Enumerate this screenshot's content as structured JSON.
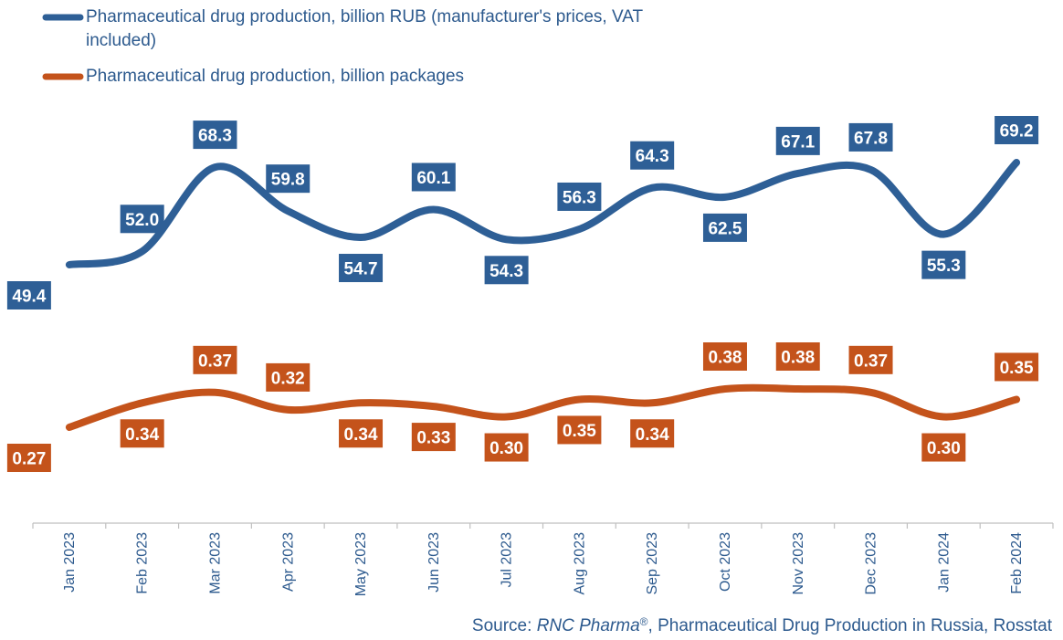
{
  "chart_data": {
    "type": "line",
    "categories": [
      "Jan 2023",
      "Feb 2023",
      "Mar 2023",
      "Apr 2023",
      "May 2023",
      "Jun 2023",
      "Jul 2023",
      "Aug 2023",
      "Sep 2023",
      "Oct 2023",
      "Nov 2023",
      "Dec 2023",
      "Jan 2024",
      "Feb 2024"
    ],
    "series": [
      {
        "name": "Pharmaceutical drug production, billion RUB (manufacturer's prices, VAT included)",
        "legend_lines": [
          "Pharmaceutical drug production, billion RUB (manufacturer's prices, VAT",
          "included)"
        ],
        "color": "#2e5f96",
        "values": [
          49.4,
          52.0,
          68.3,
          59.8,
          54.7,
          60.1,
          54.3,
          56.3,
          64.3,
          62.5,
          67.1,
          67.8,
          55.3,
          69.2
        ],
        "labels": [
          "49.4",
          "52.0",
          "68.3",
          "59.8",
          "54.7",
          "60.1",
          "54.3",
          "56.3",
          "64.3",
          "62.5",
          "67.1",
          "67.8",
          "55.3",
          "69.2"
        ],
        "label_side": [
          "below",
          "above",
          "above",
          "above",
          "below",
          "above",
          "below",
          "above",
          "above",
          "below",
          "above",
          "above",
          "below",
          "above"
        ]
      },
      {
        "name": "Pharmaceutical drug production, billion packages",
        "legend_lines": [
          "Pharmaceutical drug production, billion packages"
        ],
        "color": "#c4531b",
        "values": [
          0.27,
          0.34,
          0.37,
          0.32,
          0.34,
          0.33,
          0.3,
          0.35,
          0.34,
          0.38,
          0.38,
          0.37,
          0.3,
          0.35
        ],
        "labels": [
          "0.27",
          "0.34",
          "0.37",
          "0.32",
          "0.34",
          "0.33",
          "0.30",
          "0.35",
          "0.34",
          "0.38",
          "0.38",
          "0.37",
          "0.30",
          "0.35"
        ],
        "label_side": [
          "below",
          "below",
          "above",
          "above",
          "below",
          "below",
          "below",
          "below",
          "below",
          "above",
          "above",
          "above",
          "below",
          "above"
        ]
      }
    ],
    "legend_position": "top-left",
    "grid": false
  },
  "source": {
    "prefix": "Source: ",
    "brand": "RNC Pharma",
    "mark": "®",
    "suffix": ", Pharmaceutical Drug Production in Russia, Rosstat"
  }
}
